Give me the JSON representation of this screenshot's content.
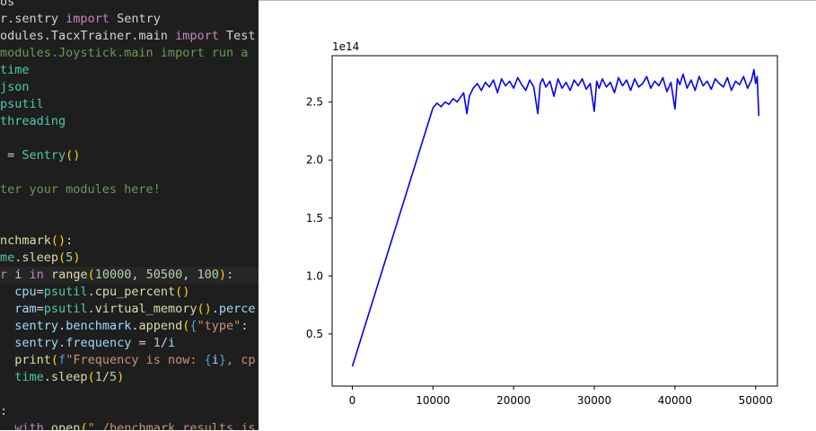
{
  "editor": {
    "lines": [
      {
        "tokens": [
          [
            "t-plain",
            "os"
          ]
        ]
      },
      {
        "tokens": [
          [
            "t-plain",
            "r.sentry "
          ],
          [
            "t-kw",
            "import"
          ],
          [
            "t-plain",
            " Sentry"
          ]
        ]
      },
      {
        "tokens": [
          [
            "t-plain",
            "odules.TacxTrainer.main "
          ],
          [
            "t-kw",
            "import"
          ],
          [
            "t-plain",
            " Test"
          ]
        ]
      },
      {
        "tokens": [
          [
            "t-cmt",
            "modules.Joystick.main import run a"
          ]
        ]
      },
      {
        "tokens": [
          [
            "t-mod",
            "time"
          ]
        ]
      },
      {
        "tokens": [
          [
            "t-mod",
            "json"
          ]
        ]
      },
      {
        "tokens": [
          [
            "t-mod",
            "psutil"
          ]
        ]
      },
      {
        "tokens": [
          [
            "t-mod",
            "threading"
          ]
        ]
      },
      {
        "tokens": [
          [
            "t-plain",
            ""
          ]
        ]
      },
      {
        "tokens": [
          [
            "t-plain",
            " = "
          ],
          [
            "t-mod",
            "Sentry"
          ],
          [
            "t-br",
            "()"
          ]
        ]
      },
      {
        "tokens": [
          [
            "t-plain",
            ""
          ]
        ]
      },
      {
        "tokens": [
          [
            "t-cmt",
            "ter your modules here!"
          ]
        ]
      },
      {
        "tokens": [
          [
            "t-plain",
            ""
          ]
        ]
      },
      {
        "tokens": [
          [
            "t-plain",
            ""
          ]
        ]
      },
      {
        "tokens": [
          [
            "t-fn",
            "nchmark"
          ],
          [
            "t-br",
            "()"
          ],
          [
            "t-plain",
            ":"
          ]
        ]
      },
      {
        "tokens": [
          [
            "t-mod",
            "me"
          ],
          [
            "t-plain",
            "."
          ],
          [
            "t-fn",
            "sleep"
          ],
          [
            "t-br",
            "("
          ],
          [
            "t-num",
            "5"
          ],
          [
            "t-br",
            ")"
          ]
        ]
      },
      {
        "tokens": [
          [
            "t-kw",
            "r"
          ],
          [
            "t-plain",
            " i "
          ],
          [
            "t-kw",
            "in"
          ],
          [
            "t-plain",
            " "
          ],
          [
            "t-fn",
            "range"
          ],
          [
            "t-br",
            "("
          ],
          [
            "t-num",
            "10000"
          ],
          [
            "t-plain",
            ", "
          ],
          [
            "t-num",
            "50500"
          ],
          [
            "t-plain",
            ", "
          ],
          [
            "t-num",
            "100"
          ],
          [
            "t-br",
            ")"
          ],
          [
            "t-plain",
            ":"
          ]
        ],
        "current": true
      },
      {
        "tokens": [
          [
            "t-plain",
            "  "
          ],
          [
            "t-var",
            "cpu"
          ],
          [
            "t-plain",
            "="
          ],
          [
            "t-mod",
            "psutil"
          ],
          [
            "t-plain",
            "."
          ],
          [
            "t-fn",
            "cpu_percent"
          ],
          [
            "t-br",
            "()"
          ]
        ]
      },
      {
        "tokens": [
          [
            "t-plain",
            "  "
          ],
          [
            "t-var",
            "ram"
          ],
          [
            "t-plain",
            "="
          ],
          [
            "t-mod",
            "psutil"
          ],
          [
            "t-plain",
            "."
          ],
          [
            "t-fn",
            "virtual_memory"
          ],
          [
            "t-br",
            "()"
          ],
          [
            "t-plain",
            "."
          ],
          [
            "t-var",
            "perce"
          ]
        ]
      },
      {
        "tokens": [
          [
            "t-plain",
            "  "
          ],
          [
            "t-var",
            "sentry"
          ],
          [
            "t-plain",
            "."
          ],
          [
            "t-var",
            "benchmark"
          ],
          [
            "t-plain",
            "."
          ],
          [
            "t-fn",
            "append"
          ],
          [
            "t-br",
            "("
          ],
          [
            "t-ctl",
            "{"
          ],
          [
            "t-str",
            "\"type\""
          ],
          [
            "t-plain",
            ":"
          ]
        ]
      },
      {
        "tokens": [
          [
            "t-plain",
            "  "
          ],
          [
            "t-var",
            "sentry"
          ],
          [
            "t-plain",
            "."
          ],
          [
            "t-var",
            "frequency"
          ],
          [
            "t-plain",
            " = "
          ],
          [
            "t-num",
            "1"
          ],
          [
            "t-plain",
            "/"
          ],
          [
            "t-var",
            "i"
          ]
        ]
      },
      {
        "tokens": [
          [
            "t-plain",
            "  "
          ],
          [
            "t-fn",
            "print"
          ],
          [
            "t-br",
            "("
          ],
          [
            "t-ctl",
            "f"
          ],
          [
            "t-str",
            "\"Frequency is now: "
          ],
          [
            "t-ctl",
            "{"
          ],
          [
            "t-var",
            "i"
          ],
          [
            "t-ctl",
            "}"
          ],
          [
            "t-str",
            ", cp"
          ]
        ]
      },
      {
        "tokens": [
          [
            "t-plain",
            "  "
          ],
          [
            "t-mod",
            "time"
          ],
          [
            "t-plain",
            "."
          ],
          [
            "t-fn",
            "sleep"
          ],
          [
            "t-br",
            "("
          ],
          [
            "t-num",
            "1"
          ],
          [
            "t-plain",
            "/"
          ],
          [
            "t-num",
            "5"
          ],
          [
            "t-br",
            ")"
          ]
        ]
      },
      {
        "tokens": [
          [
            "t-plain",
            ""
          ]
        ]
      },
      {
        "tokens": [
          [
            "t-plain",
            ":"
          ]
        ]
      },
      {
        "tokens": [
          [
            "t-plain",
            "  "
          ],
          [
            "t-kw",
            "with"
          ],
          [
            "t-plain",
            " "
          ],
          [
            "t-fn",
            "open"
          ],
          [
            "t-br",
            "("
          ],
          [
            "t-str",
            "\"./benchmark_results.js"
          ]
        ]
      }
    ]
  },
  "chart_data": {
    "type": "line",
    "title": "",
    "xlabel": "",
    "ylabel": "",
    "offset_label": "1e14",
    "xlim": [
      -2500,
      52700
    ],
    "ylim": [
      0.05,
      2.9
    ],
    "xticks": [
      0,
      10000,
      20000,
      30000,
      40000,
      50000
    ],
    "xtick_labels": [
      "0",
      "10000",
      "20000",
      "30000",
      "40000",
      "50000"
    ],
    "yticks": [
      0.5,
      1.0,
      1.5,
      2.0,
      2.5
    ],
    "ytick_labels": [
      "0.5",
      "1.0",
      "1.5",
      "2.0",
      "2.5"
    ],
    "grid": false,
    "series": [
      {
        "color": "#0000ff",
        "x": [
          0,
          10000,
          10500,
          11000,
          11500,
          12000,
          12500,
          13000,
          13500,
          13800,
          14200,
          14500,
          15000,
          15500,
          16000,
          16500,
          17000,
          17500,
          18000,
          18500,
          19000,
          19500,
          20000,
          20500,
          21000,
          21500,
          22000,
          22500,
          23000,
          23300,
          23600,
          24000,
          24500,
          25000,
          25500,
          26000,
          26500,
          27000,
          27500,
          28000,
          28500,
          29000,
          29500,
          30000,
          30300,
          30600,
          31000,
          31500,
          32000,
          32500,
          33000,
          33500,
          34000,
          34500,
          35000,
          35500,
          36000,
          36500,
          37000,
          37500,
          38000,
          38500,
          39000,
          39500,
          40000,
          40300,
          40600,
          41000,
          41500,
          42000,
          42500,
          43000,
          43500,
          44000,
          44500,
          45000,
          45500,
          46000,
          46500,
          47000,
          47500,
          48000,
          48500,
          49000,
          49500,
          49800,
          50000,
          50200,
          50400
        ],
        "y": [
          0.22,
          2.45,
          2.49,
          2.46,
          2.5,
          2.48,
          2.53,
          2.5,
          2.55,
          2.58,
          2.4,
          2.55,
          2.62,
          2.66,
          2.6,
          2.67,
          2.63,
          2.69,
          2.58,
          2.7,
          2.64,
          2.68,
          2.62,
          2.71,
          2.65,
          2.6,
          2.69,
          2.63,
          2.4,
          2.66,
          2.7,
          2.63,
          2.68,
          2.55,
          2.7,
          2.62,
          2.67,
          2.6,
          2.69,
          2.64,
          2.7,
          2.61,
          2.66,
          2.42,
          2.68,
          2.62,
          2.7,
          2.63,
          2.67,
          2.58,
          2.71,
          2.64,
          2.69,
          2.6,
          2.7,
          2.63,
          2.66,
          2.72,
          2.62,
          2.68,
          2.64,
          2.71,
          2.59,
          2.67,
          2.44,
          2.7,
          2.65,
          2.74,
          2.62,
          2.69,
          2.6,
          2.72,
          2.64,
          2.68,
          2.61,
          2.7,
          2.66,
          2.63,
          2.71,
          2.6,
          2.68,
          2.65,
          2.72,
          2.62,
          2.69,
          2.78,
          2.66,
          2.72,
          2.38
        ]
      }
    ]
  }
}
